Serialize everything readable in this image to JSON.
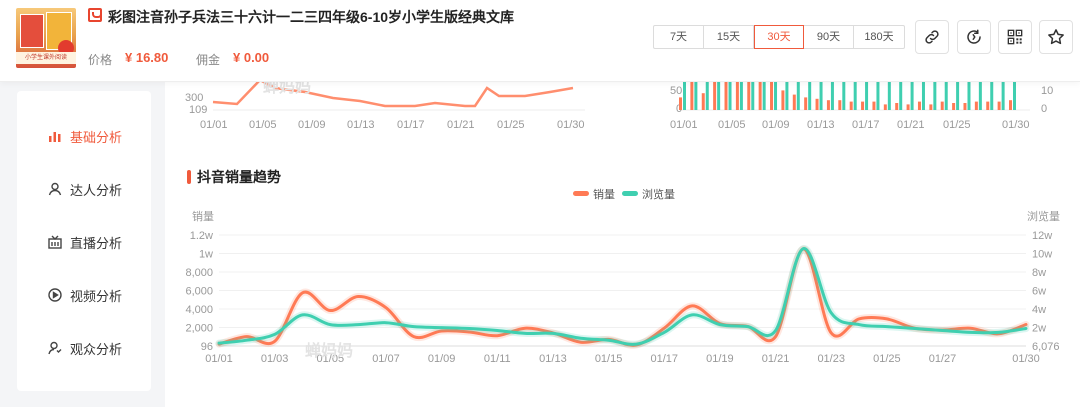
{
  "product": {
    "title": "彩图注音孙子兵法三十六计一二三四年级6-10岁小学生版经典文库",
    "price_label": "价格",
    "price_value": "¥ 16.80",
    "commission_label": "佣金",
    "commission_value": "¥ 0.00",
    "thumb_band_text": "小学生课外阅读"
  },
  "time_range": {
    "options": [
      "7天",
      "15天",
      "30天",
      "90天",
      "180天"
    ],
    "selected": "30天"
  },
  "toolbar": {
    "icons": [
      "link-icon",
      "refresh-icon",
      "qrcode-icon",
      "star-icon"
    ]
  },
  "sidebar": {
    "items": [
      {
        "label": "基础分析",
        "icon": "chart-icon",
        "active": true
      },
      {
        "label": "达人分析",
        "icon": "person-icon",
        "active": false
      },
      {
        "label": "直播分析",
        "icon": "live-icon",
        "active": false
      },
      {
        "label": "视频分析",
        "icon": "play-icon",
        "active": false
      },
      {
        "label": "观众分析",
        "icon": "audience-icon",
        "active": false
      }
    ]
  },
  "colors": {
    "accent": "#f05a3c",
    "sales": "#ff7a55",
    "views": "#3fcfb0"
  },
  "watermark": "蝉妈妈",
  "top_left_chart": {
    "y_ticks": [
      "300",
      "109"
    ],
    "x_ticks": [
      "01/01",
      "01/05",
      "01/09",
      "01/13",
      "01/17",
      "01/21",
      "01/25",
      "01/30"
    ]
  },
  "top_right_chart": {
    "y_left_ticks": [
      "50",
      "0"
    ],
    "y_right_ticks": [
      "10",
      "0"
    ],
    "x_ticks": [
      "01/01",
      "01/05",
      "01/09",
      "01/13",
      "01/17",
      "01/21",
      "01/25",
      "01/30"
    ]
  },
  "main_chart": {
    "section_title": "抖音销量趋势"
  },
  "chart_data": {
    "type": "line",
    "title": "",
    "legend": [
      "销量",
      "浏览量"
    ],
    "legend_position": "top-center",
    "ylabel_left": "销量",
    "ylabel_right": "浏览量",
    "y_left_ticks": [
      "96",
      "2,000",
      "4,000",
      "6,000",
      "8,000",
      "1w",
      "1.2w"
    ],
    "y_right_ticks": [
      "6,076",
      "2w",
      "4w",
      "6w",
      "8w",
      "10w",
      "12w"
    ],
    "x_ticks": [
      "01/01",
      "01/03",
      "01/05",
      "01/07",
      "01/09",
      "01/11",
      "01/13",
      "01/15",
      "01/17",
      "01/19",
      "01/21",
      "01/23",
      "01/25",
      "01/27",
      "01/30"
    ],
    "x": [
      "01/01",
      "01/02",
      "01/03",
      "01/04",
      "01/05",
      "01/06",
      "01/07",
      "01/08",
      "01/09",
      "01/10",
      "01/11",
      "01/12",
      "01/13",
      "01/14",
      "01/15",
      "01/16",
      "01/17",
      "01/18",
      "01/19",
      "01/20",
      "01/21",
      "01/22",
      "01/23",
      "01/24",
      "01/25",
      "01/26",
      "01/27",
      "01/28",
      "01/29",
      "01/30"
    ],
    "ylim_left": [
      96,
      12000
    ],
    "ylim_right": [
      6076,
      120000
    ],
    "grid": true,
    "series": [
      {
        "name": "销量",
        "axis": "left",
        "color": "#ff7a55",
        "values": [
          300,
          1100,
          600,
          5800,
          3900,
          5400,
          4200,
          1100,
          1700,
          1600,
          1200,
          2000,
          1500,
          500,
          800,
          200,
          2000,
          4400,
          2500,
          2200,
          1100,
          10500,
          1500,
          3000,
          3000,
          2000,
          1800,
          2000,
          1400,
          2400
        ]
      },
      {
        "name": "浏览量",
        "axis": "right",
        "color": "#3fcfb0",
        "values": [
          9000,
          12000,
          18000,
          38000,
          28000,
          28000,
          30000,
          26000,
          25000,
          24000,
          22000,
          19000,
          19000,
          14000,
          12000,
          8000,
          20000,
          38000,
          28000,
          26000,
          22000,
          106000,
          40000,
          28000,
          26000,
          24000,
          22000,
          20000,
          20000,
          24000
        ]
      }
    ]
  }
}
